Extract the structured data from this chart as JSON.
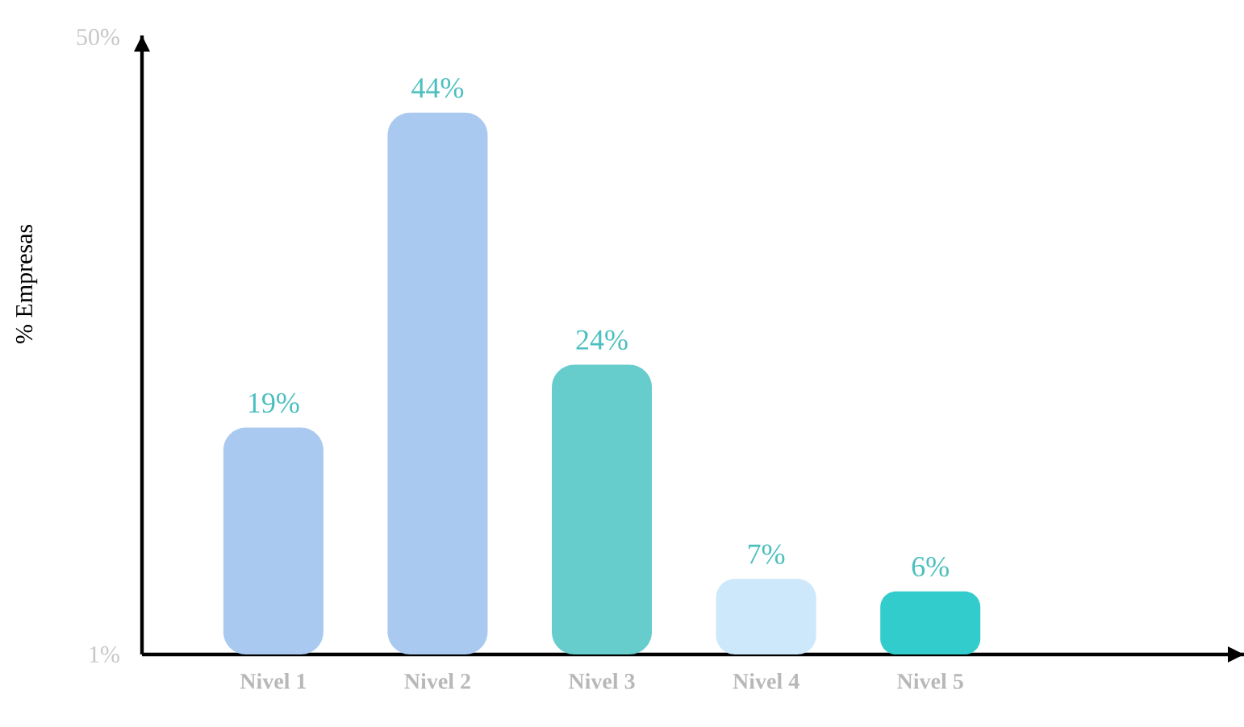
{
  "chart_data": {
    "type": "bar",
    "ylabel": "% Empresas",
    "categories": [
      "Nivel 1",
      "Nivel 2",
      "Nivel 3",
      "Nivel 4",
      "Nivel 5"
    ],
    "values": [
      19,
      44,
      24,
      7,
      6
    ],
    "colors": [
      "#a9c9f0",
      "#a9c9f0",
      "#66cccc",
      "#cce8fa",
      "#33cccc"
    ],
    "ylim": [
      1,
      50
    ],
    "yticks": [
      {
        "value": 1,
        "label": "1%"
      },
      {
        "value": 50,
        "label": "50%"
      }
    ],
    "data_labels": true,
    "value_labels": [
      "19%",
      "44%",
      "24%",
      "7%",
      "6%"
    ]
  }
}
